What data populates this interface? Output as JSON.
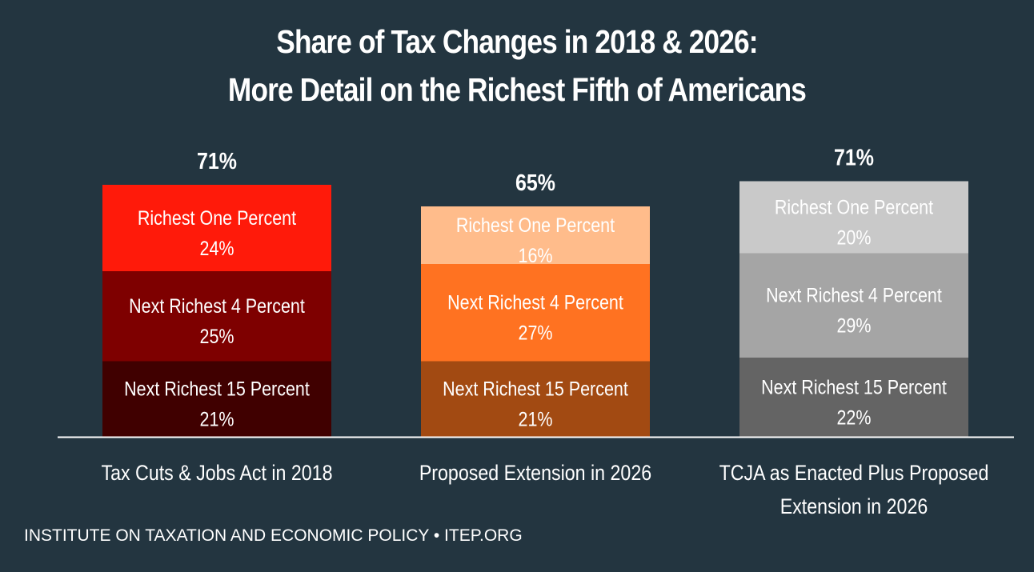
{
  "title": {
    "line1": "Share of Tax Changes in 2018 & 2026:",
    "line2": "More Detail on the Richest Fifth of Americans"
  },
  "footer": {
    "text": "INSTITUTE ON TAXATION AND ECONOMIC POLICY • ITEP.ORG"
  },
  "chart_data": {
    "type": "bar",
    "stacked": true,
    "categories": [
      [
        "Tax Cuts & Jobs Act in 2018"
      ],
      [
        "Proposed Extension in 2026"
      ],
      [
        "TCJA as Enacted Plus Proposed",
        "Extension in 2026"
      ]
    ],
    "totals": [
      "71%",
      "65%",
      "71%"
    ],
    "segment_labels": [
      "Next Richest 15 Percent",
      "Next Richest 4 Percent",
      "Richest One Percent"
    ],
    "series": [
      {
        "values": [
          21,
          21,
          22
        ],
        "labels": [
          "21%",
          "21%",
          "22%"
        ],
        "colors": [
          "#400000",
          "#A24A12",
          "#646464"
        ]
      },
      {
        "values": [
          25,
          27,
          29
        ],
        "labels": [
          "25%",
          "27%",
          "29%"
        ],
        "colors": [
          "#7E0000",
          "#FF7221",
          "#A5A5A5"
        ]
      },
      {
        "values": [
          24,
          16,
          20
        ],
        "labels": [
          "24%",
          "16%",
          "20%"
        ],
        "colors": [
          "#FF1A0A",
          "#FFBC8B",
          "#C9C9C9"
        ]
      }
    ],
    "text_color": "#ffffff",
    "axis_color": "#ffffff",
    "background": "#233540",
    "ylim": [
      0,
      75
    ],
    "grid": false,
    "legend": "none"
  }
}
